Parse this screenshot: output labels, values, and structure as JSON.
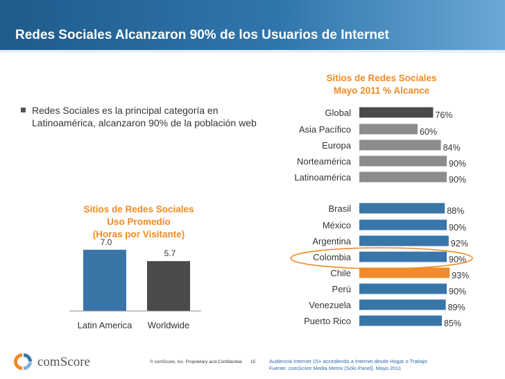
{
  "header": {
    "title": "Redes Sociales Alcanzaron 90% de los Usuarios de Internet"
  },
  "bullet": {
    "text": "Redes Sociales es la principal categoría en Latinoamérica, alcanzaron 90% de la población web"
  },
  "colors": {
    "header_blue": "#2f76ad",
    "orange": "#f08a24",
    "dark_gray": "#4a4a4a",
    "gray": "#8c8c8c",
    "blue": "#3a75a8",
    "highlight_orange": "#f18a2a"
  },
  "chart_data": [
    {
      "type": "bar",
      "orientation": "vertical",
      "title_lines": [
        "Sitios de Redes Sociales",
        "Uso Promedio",
        "(Horas por Visitante)"
      ],
      "categories": [
        "Latin America",
        "Worldwide"
      ],
      "values": [
        7.0,
        5.7
      ],
      "value_labels": [
        "7.0",
        "5.7"
      ],
      "colors": [
        "#3a75a8",
        "#4a4a4a"
      ],
      "ylim": [
        0,
        10
      ],
      "grid": false
    },
    {
      "type": "bar",
      "orientation": "horizontal",
      "title_lines": [
        "Sitios de Redes Sociales",
        "Mayo 2011 % Alcance"
      ],
      "categories": [
        "Global",
        "Asia Pacífico",
        "Europa",
        "Norteamérica",
        "Latinoamérica",
        "Brasil",
        "México",
        "Argentina",
        "Colombia",
        "Chile",
        "Perú",
        "Venezuela",
        "Puerto Rico"
      ],
      "values": [
        76,
        60,
        84,
        90,
        90,
        88,
        90,
        92,
        90,
        93,
        90,
        89,
        85
      ],
      "value_labels": [
        "76%",
        "60%",
        "84%",
        "90%",
        "90%",
        "88%",
        "90%",
        "92%",
        "90%",
        "93%",
        "90%",
        "89%",
        "85%"
      ],
      "colors": [
        "#4a4a4a",
        "#8c8c8c",
        "#8c8c8c",
        "#8c8c8c",
        "#8c8c8c",
        "#3a75a8",
        "#3a75a8",
        "#3a75a8",
        "#3a75a8",
        "#f18a2a",
        "#3a75a8",
        "#3a75a8",
        "#3a75a8"
      ],
      "highlighted_category": "Colombia",
      "xlim": [
        0,
        100
      ],
      "grid": false
    }
  ],
  "footer": {
    "logo_text": "comScore",
    "copyright": "© comScore, Inc.  Proprietary and Confidential.",
    "page_number": "15",
    "note_lines": [
      "Audiencia Internet 15+ accediendo a  Internet desde Hogar o Trabajo",
      "Fuente: comScore Media Metrix (Sólo Panel), Mayo 2011"
    ]
  }
}
